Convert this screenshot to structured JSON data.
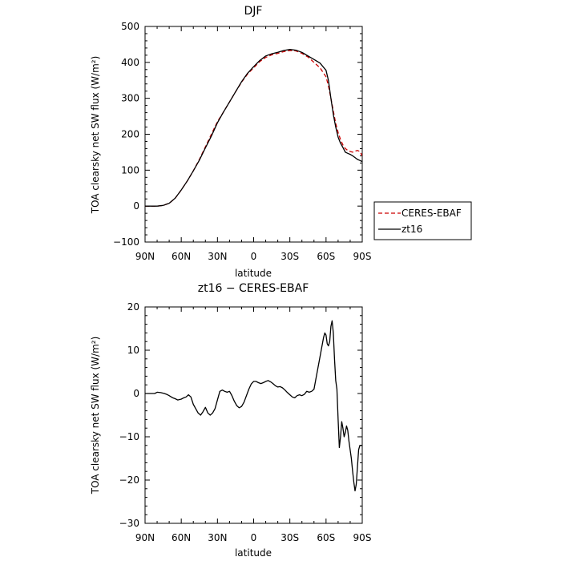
{
  "chart_data": [
    {
      "type": "line",
      "title": "DJF",
      "xlabel": "latitude",
      "ylabel": "TOA clearsky net SW flux (W/m²)",
      "xlim": [
        90,
        -90
      ],
      "ylim": [
        -100,
        500
      ],
      "x_tick_values": [
        90,
        60,
        30,
        0,
        -30,
        -60,
        -90
      ],
      "x_tick_labels": [
        "90N",
        "60N",
        "30N",
        "0",
        "30S",
        "60S",
        "90S"
      ],
      "y_ticks": [
        -100,
        0,
        100,
        200,
        300,
        400,
        500
      ],
      "legend": {
        "placement": "right-outside"
      },
      "x": [
        90,
        80,
        75,
        70,
        65,
        60,
        55,
        50,
        45,
        40,
        35,
        30,
        25,
        20,
        15,
        10,
        5,
        0,
        -5,
        -10,
        -15,
        -20,
        -25,
        -30,
        -35,
        -40,
        -45,
        -50,
        -55,
        -60,
        -62,
        -64,
        -66,
        -68,
        -70,
        -72,
        -74,
        -76,
        -78,
        -80,
        -82,
        -84,
        -86,
        -88,
        -90
      ],
      "series": [
        {
          "name": "CERES-EBAF",
          "color": "#cc0000",
          "dash": true,
          "values": [
            0,
            0,
            2,
            8,
            22,
            45,
            70,
            98,
            130,
            165,
            200,
            235,
            262,
            290,
            318,
            345,
            368,
            385,
            402,
            414,
            421,
            425,
            430,
            433,
            432,
            425,
            415,
            400,
            385,
            360,
            335,
            300,
            265,
            230,
            205,
            185,
            170,
            160,
            155,
            152,
            150,
            153,
            155,
            152,
            140
          ]
        },
        {
          "name": "zt16",
          "color": "#000000",
          "dash": false,
          "values": [
            0,
            0,
            2,
            8,
            22,
            45,
            70,
            98,
            128,
            162,
            195,
            232,
            262,
            290,
            318,
            346,
            370,
            388,
            405,
            418,
            424,
            428,
            433,
            436,
            434,
            428,
            418,
            408,
            398,
            378,
            350,
            300,
            255,
            220,
            192,
            175,
            163,
            150,
            147,
            144,
            140,
            135,
            130,
            127,
            124
          ]
        }
      ]
    },
    {
      "type": "line",
      "title": "zt16 − CERES-EBAF",
      "xlabel": "latitude",
      "ylabel": "TOA clearsky net SW flux (W/m²)",
      "xlim": [
        90,
        -90
      ],
      "ylim": [
        -30,
        20
      ],
      "x_tick_values": [
        90,
        60,
        30,
        0,
        -30,
        -60,
        -90
      ],
      "x_tick_labels": [
        "90N",
        "60N",
        "30N",
        "0",
        "30S",
        "60S",
        "90S"
      ],
      "y_ticks": [
        -30,
        -20,
        -10,
        0,
        10,
        20
      ],
      "series": [
        {
          "name": "",
          "color": "#000000",
          "dash": false,
          "x": [
            90,
            82,
            80,
            77,
            74,
            72,
            70,
            67,
            65,
            63,
            60,
            58,
            56,
            54,
            52,
            50,
            48,
            46,
            44,
            42,
            40,
            38,
            36,
            34,
            32,
            30,
            28,
            26,
            24,
            22,
            20,
            18,
            16,
            14,
            12,
            10,
            8,
            6,
            4,
            2,
            0,
            -2,
            -4,
            -6,
            -8,
            -10,
            -12,
            -14,
            -16,
            -18,
            -20,
            -22,
            -24,
            -26,
            -28,
            -30,
            -32,
            -34,
            -36,
            -38,
            -40,
            -42,
            -44,
            -46,
            -48,
            -50,
            -52,
            -54,
            -56,
            -58,
            -59,
            -60,
            -61,
            -62,
            -63,
            -64,
            -65,
            -66,
            -67,
            -68,
            -69,
            -70,
            -71,
            -72,
            -73,
            -74,
            -75,
            -76,
            -77,
            -78,
            -79,
            -80,
            -81,
            -82,
            -83,
            -84,
            -85,
            -86,
            -87,
            -88,
            -89,
            -90
          ],
          "values": [
            0,
            0,
            0.3,
            0.2,
            0,
            -0.2,
            -0.5,
            -1,
            -1.2,
            -1.5,
            -1.3,
            -1,
            -0.8,
            -0.3,
            -0.8,
            -2.5,
            -3.5,
            -4.5,
            -5,
            -4.2,
            -3.2,
            -4.5,
            -5,
            -4.5,
            -3.5,
            -1.5,
            0.5,
            0.8,
            0.5,
            0.3,
            0.5,
            -0.5,
            -1.8,
            -2.8,
            -3.3,
            -3,
            -2,
            -0.5,
            1,
            2.2,
            2.8,
            2.8,
            2.5,
            2.3,
            2.5,
            2.8,
            3,
            2.7,
            2.3,
            1.8,
            1.5,
            1.6,
            1.3,
            0.8,
            0.2,
            -0.3,
            -0.8,
            -1,
            -0.5,
            -0.3,
            -0.5,
            -0.2,
            0.5,
            0.3,
            0.5,
            1,
            4,
            7,
            10,
            13,
            14,
            13.5,
            11.5,
            11,
            12,
            15.5,
            16.8,
            14,
            8,
            3,
            1,
            -6,
            -12.5,
            -10,
            -6.5,
            -8,
            -10,
            -9,
            -7.5,
            -8.5,
            -11,
            -13,
            -15,
            -18,
            -20.5,
            -22.5,
            -21,
            -17,
            -13,
            -12,
            -12,
            -12
          ]
        }
      ]
    }
  ]
}
